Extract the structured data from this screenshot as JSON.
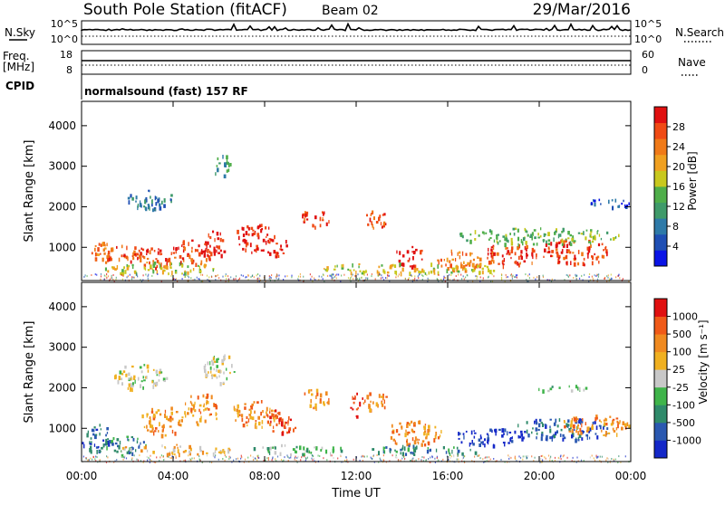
{
  "header": {
    "title": "South Pole Station (fitACF)",
    "beam": "Beam 02",
    "date": "29/Mar/2016"
  },
  "top_panels": {
    "nsky_label": "N.Sky",
    "nsky_ticks": [
      "10^5",
      "10^0"
    ],
    "nsearch_label": "N.Search",
    "nsearch_ticks": [
      "10^5",
      "10^0"
    ],
    "freq_label_1": "Freq.",
    "freq_label_2": "[MHz]",
    "freq_ticks": [
      "18",
      "8"
    ],
    "nave_label": "Nave",
    "nave_ticks": [
      "60",
      "0"
    ],
    "cpid_label": "CPID",
    "cpid_text": "normalsound (fast) 157 RF"
  },
  "chart_data": [
    {
      "type": "heatmap",
      "name": "power-panel",
      "ylabel": "Slant Range [km]",
      "xlabel": "",
      "y_ticks": [
        "1000",
        "2000",
        "3000",
        "4000"
      ],
      "xlim_hours": [
        0,
        24
      ],
      "ylim_km": [
        180,
        4600
      ],
      "colorbar": {
        "label": "Power [dB]",
        "ticks": [
          "4",
          "8",
          "12",
          "16",
          "20",
          "24",
          "28"
        ],
        "colors": [
          "#0a14e6",
          "#1f4fb4",
          "#2e7aa8",
          "#3f9a6a",
          "#4fae4a",
          "#c8c81e",
          "#f0a020",
          "#f07a18",
          "#f04a14",
          "#e01010"
        ]
      },
      "blobs": [
        {
          "t": 0.9,
          "r": 900,
          "dt": 0.6,
          "dr": 250,
          "c": 7
        },
        {
          "t": 2.0,
          "r": 850,
          "dt": 0.9,
          "dr": 220,
          "c": 8
        },
        {
          "t": 3.3,
          "r": 750,
          "dt": 0.8,
          "dr": 260,
          "c": 8
        },
        {
          "t": 4.8,
          "r": 900,
          "dt": 0.9,
          "dr": 300,
          "c": 8
        },
        {
          "t": 5.8,
          "r": 1100,
          "dt": 0.5,
          "dr": 350,
          "c": 9
        },
        {
          "t": 7.6,
          "r": 1250,
          "dt": 0.9,
          "dr": 350,
          "c": 9
        },
        {
          "t": 8.5,
          "r": 1050,
          "dt": 0.5,
          "dr": 250,
          "c": 9
        },
        {
          "t": 10.2,
          "r": 1750,
          "dt": 0.6,
          "dr": 220,
          "c": 8
        },
        {
          "t": 12.8,
          "r": 1700,
          "dt": 0.5,
          "dr": 250,
          "c": 8
        },
        {
          "t": 14.3,
          "r": 800,
          "dt": 0.6,
          "dr": 250,
          "c": 9
        },
        {
          "t": 16.5,
          "r": 700,
          "dt": 1.0,
          "dr": 260,
          "c": 7
        },
        {
          "t": 18.8,
          "r": 850,
          "dt": 1.2,
          "dr": 300,
          "c": 8
        },
        {
          "t": 21.5,
          "r": 900,
          "dt": 1.5,
          "dr": 320,
          "c": 8
        },
        {
          "t": 6.2,
          "r": 3000,
          "dt": 0.4,
          "dr": 300,
          "c": 3
        },
        {
          "t": 3.0,
          "r": 2200,
          "dt": 1.0,
          "dr": 250,
          "c": 2
        },
        {
          "t": 23.0,
          "r": 2100,
          "dt": 1.0,
          "dr": 120,
          "c": 1
        },
        {
          "t": 3.5,
          "r": 500,
          "dt": 2.5,
          "dr": 150,
          "c": 5
        },
        {
          "t": 14.5,
          "r": 500,
          "dt": 4.0,
          "dr": 130,
          "c": 5
        },
        {
          "t": 20.0,
          "r": 1300,
          "dt": 3.5,
          "dr": 200,
          "c": 4
        }
      ]
    },
    {
      "type": "heatmap",
      "name": "velocity-panel",
      "ylabel": "Slant Range [km]",
      "xlabel": "Time UT",
      "x_ticks": [
        "00:00",
        "04:00",
        "08:00",
        "12:00",
        "16:00",
        "20:00",
        "00:00"
      ],
      "y_ticks": [
        "1000",
        "2000",
        "3000",
        "4000"
      ],
      "xlim_hours": [
        0,
        24
      ],
      "ylim_km": [
        180,
        4600
      ],
      "colorbar": {
        "label": "Velocity [m s⁻¹]",
        "ticks": [
          "1000",
          "500",
          "100",
          "25",
          "-25",
          "-100",
          "-500",
          "-1000"
        ],
        "colors": [
          "#1428c8",
          "#2a58b0",
          "#2f8a6a",
          "#3fb44a",
          "#c8c8c8",
          "#f0b020",
          "#f08a20",
          "#f05a18",
          "#e01010"
        ]
      },
      "blobs": [
        {
          "t": 0.6,
          "r": 800,
          "dt": 0.6,
          "dr": 350,
          "c": 1
        },
        {
          "t": 1.8,
          "r": 600,
          "dt": 1.0,
          "dr": 250,
          "c": 2
        },
        {
          "t": 3.5,
          "r": 1200,
          "dt": 0.9,
          "dr": 350,
          "c": 6
        },
        {
          "t": 5.2,
          "r": 1500,
          "dt": 0.8,
          "dr": 400,
          "c": 6
        },
        {
          "t": 6.0,
          "r": 2500,
          "dt": 0.7,
          "dr": 400,
          "c": 4
        },
        {
          "t": 7.5,
          "r": 1400,
          "dt": 1.0,
          "dr": 350,
          "c": 6
        },
        {
          "t": 8.7,
          "r": 1200,
          "dt": 0.7,
          "dr": 300,
          "c": 7
        },
        {
          "t": 10.2,
          "r": 1750,
          "dt": 0.6,
          "dr": 230,
          "c": 6
        },
        {
          "t": 12.8,
          "r": 1700,
          "dt": 0.5,
          "dr": 250,
          "c": 6
        },
        {
          "t": 12.0,
          "r": 1600,
          "dt": 0.3,
          "dr": 300,
          "c": 8
        },
        {
          "t": 14.5,
          "r": 900,
          "dt": 1.2,
          "dr": 300,
          "c": 6
        },
        {
          "t": 17.8,
          "r": 800,
          "dt": 1.5,
          "dr": 220,
          "c": 0
        },
        {
          "t": 21.0,
          "r": 1000,
          "dt": 2.0,
          "dr": 300,
          "c": 1
        },
        {
          "t": 22.5,
          "r": 1100,
          "dt": 1.5,
          "dr": 250,
          "c": 6
        },
        {
          "t": 4.2,
          "r": 500,
          "dt": 2.5,
          "dr": 120,
          "c": 5
        },
        {
          "t": 9.5,
          "r": 500,
          "dt": 2.0,
          "dr": 120,
          "c": 3
        },
        {
          "t": 15.0,
          "r": 500,
          "dt": 2.5,
          "dr": 120,
          "c": 2
        },
        {
          "t": 21.0,
          "r": 2000,
          "dt": 1.2,
          "dr": 80,
          "c": 3
        },
        {
          "t": 2.5,
          "r": 2300,
          "dt": 1.2,
          "dr": 300,
          "c": 4
        }
      ]
    }
  ]
}
